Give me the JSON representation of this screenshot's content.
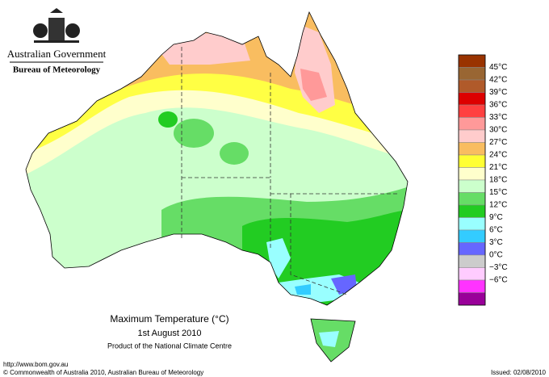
{
  "header": {
    "title": "Australian Government",
    "subtitle": "Bureau of Meteorology"
  },
  "map": {
    "title": "Maximum Temperature (°C)",
    "date": "1st August 2010",
    "product": "Product of the National Climate Centre"
  },
  "legend": {
    "labels": [
      "45°C",
      "42°C",
      "39°C",
      "36°C",
      "33°C",
      "30°C",
      "27°C",
      "24°C",
      "21°C",
      "18°C",
      "15°C",
      "12°C",
      "9°C",
      "6°C",
      "3°C",
      "0°C",
      "−3°C",
      "−6°C"
    ],
    "colors": [
      "#993300",
      "#996633",
      "#b05a2a",
      "#dd0000",
      "#ff4040",
      "#ff9999",
      "#ffcccc",
      "#f9bd60",
      "#ffff33",
      "#ffffcc",
      "#ccffcc",
      "#66dd66",
      "#22cc22",
      "#99ffff",
      "#33ccff",
      "#6666ff",
      "#cccccc",
      "#ffccff",
      "#ff33ff",
      "#990099"
    ]
  },
  "footer": {
    "url": "http://www.bom.gov.au",
    "copyright": "© Commonwealth of Australia 2010, Australian Bureau of Meteorology",
    "issued": "Issued: 02/08/2010"
  }
}
